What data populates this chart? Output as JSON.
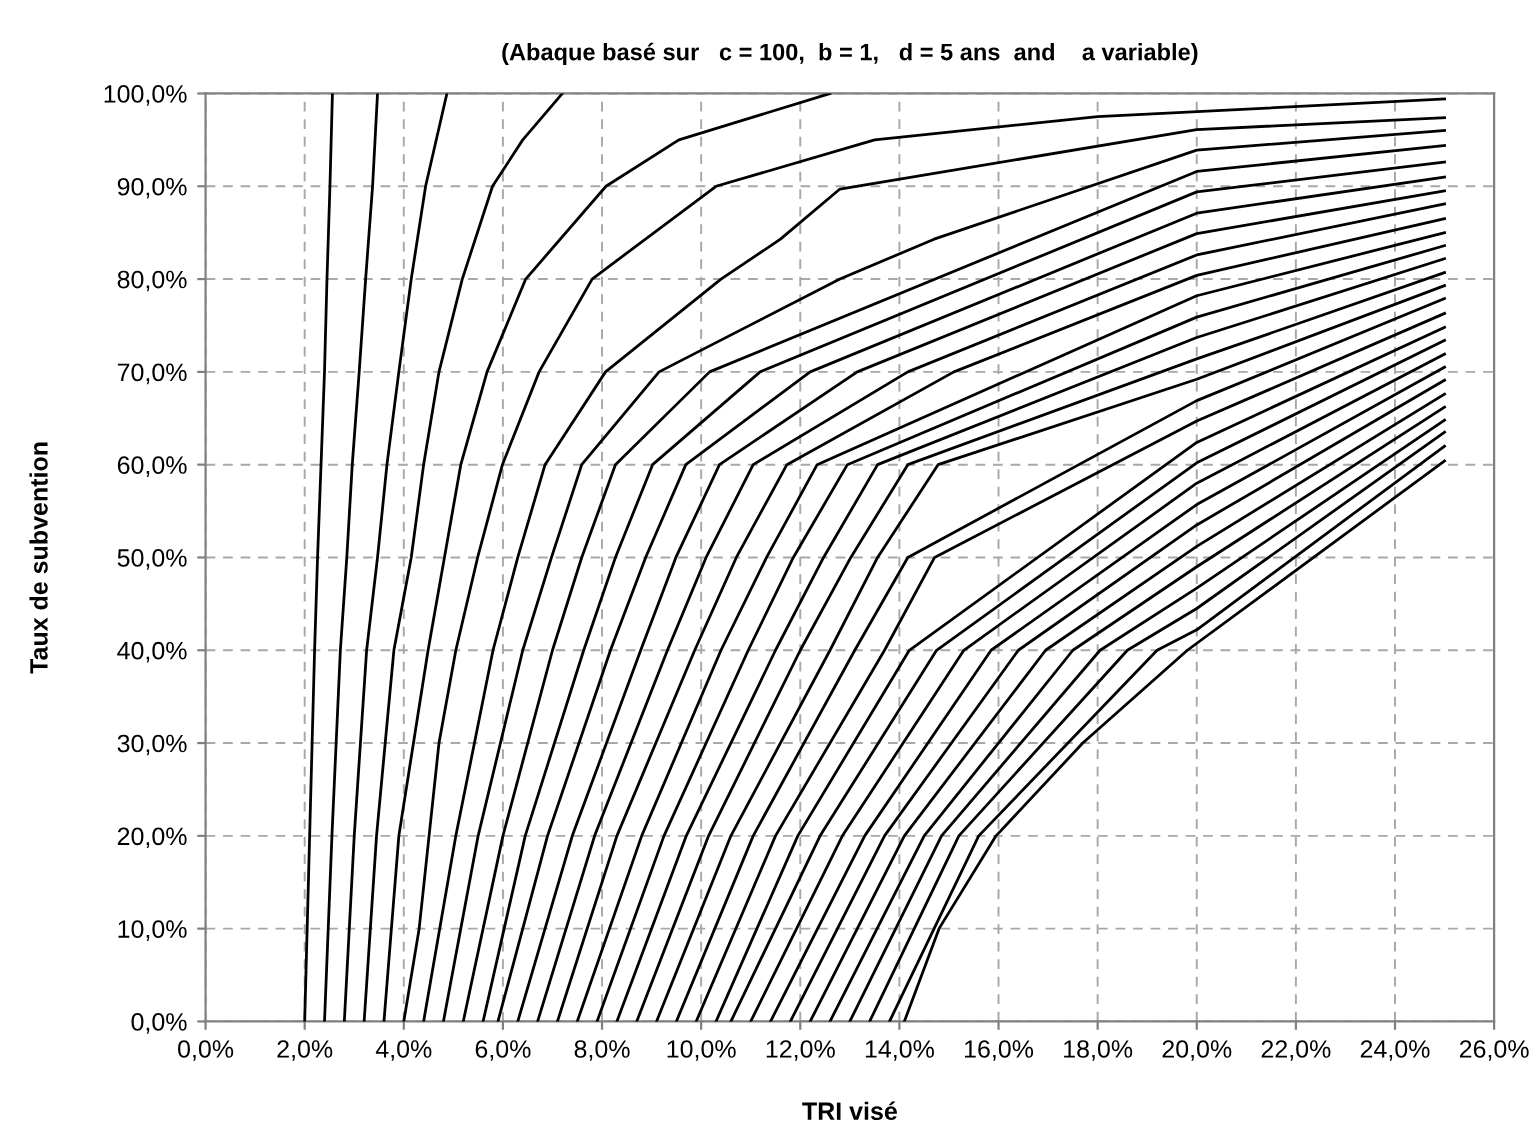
{
  "chart_data": {
    "type": "line",
    "title": "(Abaque basé sur   c = 100,  b = 1,   d = 5 ans  and    a variable)",
    "xlabel": "TRI visé",
    "ylabel": "Taux de subvention",
    "grid": true,
    "line_style": "solid",
    "xlim": [
      0,
      26
    ],
    "ylim": [
      0,
      100
    ],
    "xticks": [
      {
        "value": 0,
        "label": "0,0%"
      },
      {
        "value": 2,
        "label": "2,0%"
      },
      {
        "value": 4,
        "label": "4,0%"
      },
      {
        "value": 6,
        "label": "6,0%"
      },
      {
        "value": 8,
        "label": "8,0%"
      },
      {
        "value": 10,
        "label": "10,0%"
      },
      {
        "value": 12,
        "label": "12,0%"
      },
      {
        "value": 14,
        "label": "14,0%"
      },
      {
        "value": 16,
        "label": "16,0%"
      },
      {
        "value": 18,
        "label": "18,0%"
      },
      {
        "value": 20,
        "label": "20,0%"
      },
      {
        "value": 22,
        "label": "22,0%"
      },
      {
        "value": 24,
        "label": "24,0%"
      },
      {
        "value": 26,
        "label": "26,0%"
      }
    ],
    "yticks": [
      {
        "value": 0,
        "label": "0,0%"
      },
      {
        "value": 10,
        "label": "10,0%"
      },
      {
        "value": 20,
        "label": "20,0%"
      },
      {
        "value": 30,
        "label": "30,0%"
      },
      {
        "value": 40,
        "label": "40,0%"
      },
      {
        "value": 50,
        "label": "50,0%"
      },
      {
        "value": 60,
        "label": "60,0%"
      },
      {
        "value": 70,
        "label": "70,0%"
      },
      {
        "value": 80,
        "label": "80,0%"
      },
      {
        "value": 90,
        "label": "90,0%"
      },
      {
        "value": 100,
        "label": "100,0%"
      }
    ],
    "series": [
      {
        "color": "#000000",
        "x": [
          2.0,
          2.1,
          2.2,
          2.26,
          2.33,
          2.4,
          2.45,
          2.51,
          2.56
        ],
        "values": [
          0,
          20,
          40,
          50,
          60,
          70,
          80,
          90,
          100
        ]
      },
      {
        "color": "#000000",
        "x": [
          2.4,
          2.55,
          2.72,
          2.85,
          2.96,
          3.1,
          3.23,
          3.37,
          3.47
        ],
        "values": [
          0,
          20,
          40,
          50,
          60,
          70,
          80,
          90,
          100
        ]
      },
      {
        "color": "#000000",
        "x": [
          2.8,
          3.0,
          3.25,
          3.47,
          3.66,
          3.9,
          4.15,
          4.44,
          4.87
        ],
        "values": [
          0,
          20,
          40,
          50,
          60,
          70,
          80,
          90,
          100
        ]
      },
      {
        "color": "#000000",
        "x": [
          3.2,
          3.45,
          3.8,
          4.15,
          4.4,
          4.71,
          5.18,
          5.79,
          6.4,
          7.2
        ],
        "values": [
          0,
          20,
          40,
          50,
          60,
          70,
          80,
          90,
          95,
          100
        ]
      },
      {
        "color": "#000000",
        "x": [
          3.6,
          3.9,
          4.49,
          4.82,
          5.15,
          5.68,
          6.46,
          8.08,
          9.55,
          12.6
        ],
        "values": [
          0,
          20,
          40,
          50,
          60,
          70,
          80,
          90,
          95,
          100
        ]
      },
      {
        "color": "#000000",
        "x": [
          4.0,
          4.31,
          4.51,
          4.71,
          5.05,
          5.49,
          5.99,
          6.73,
          7.8,
          10.3,
          13.5,
          18,
          25
        ],
        "values": [
          0,
          10,
          20,
          30,
          40,
          50,
          60,
          70,
          80,
          90,
          95,
          97.5,
          99.4
        ]
      },
      {
        "color": "#000000",
        "x": [
          4.4,
          5.05,
          5.8,
          6.3,
          6.85,
          8.07,
          10.4,
          11.6,
          12.8,
          20,
          25
        ],
        "values": [
          0,
          20,
          40,
          50,
          60,
          70,
          80,
          84.3,
          89.7,
          96.1,
          97.4
        ]
      },
      {
        "color": "#000000",
        "x": [
          4.8,
          5.5,
          6.4,
          6.98,
          7.59,
          9.15,
          12.8,
          14.7,
          20,
          25
        ],
        "values": [
          0,
          20,
          40,
          50,
          60,
          70,
          80,
          84.3,
          93.9,
          96.0
        ]
      },
      {
        "color": "#000000",
        "x": [
          5.2,
          6.0,
          7.0,
          7.59,
          8.27,
          10.17,
          20,
          25
        ],
        "values": [
          0,
          20,
          40,
          50,
          60,
          70,
          91.6,
          94.4
        ]
      },
      {
        "color": "#000000",
        "x": [
          5.6,
          6.45,
          7.63,
          8.27,
          9.02,
          11.19,
          20,
          25
        ],
        "values": [
          0,
          20,
          40,
          50,
          60,
          70,
          89.4,
          92.6
        ]
      },
      {
        "color": "#000000",
        "x": [
          5.9,
          6.9,
          8.17,
          8.88,
          9.69,
          12.2,
          20,
          25
        ],
        "values": [
          0,
          20,
          40,
          50,
          60,
          70,
          87.1,
          91.0
        ]
      },
      {
        "color": "#000000",
        "x": [
          6.3,
          7.4,
          8.78,
          9.49,
          10.37,
          13.15,
          20,
          25
        ],
        "values": [
          0,
          20,
          40,
          50,
          60,
          70,
          84.9,
          89.5
        ]
      },
      {
        "color": "#000000",
        "x": [
          6.7,
          7.85,
          9.32,
          10.1,
          11.05,
          14.17,
          20,
          25
        ],
        "values": [
          0,
          20,
          40,
          50,
          60,
          70,
          82.6,
          88.1
        ]
      },
      {
        "color": "#000000",
        "x": [
          7.1,
          8.3,
          9.87,
          10.71,
          11.73,
          15.1,
          20,
          25
        ],
        "values": [
          0,
          20,
          40,
          50,
          60,
          70,
          80.4,
          86.5
        ]
      },
      {
        "color": "#000000",
        "x": [
          7.5,
          8.8,
          10.4,
          11.32,
          12.34,
          20,
          25
        ],
        "values": [
          0,
          20,
          40,
          50,
          60,
          78.2,
          85.0
        ]
      },
      {
        "color": "#000000",
        "x": [
          7.9,
          9.25,
          10.95,
          11.86,
          12.95,
          20,
          25
        ],
        "values": [
          0,
          20,
          40,
          50,
          60,
          75.9,
          83.6
        ]
      },
      {
        "color": "#000000",
        "x": [
          8.3,
          9.7,
          11.5,
          12.47,
          13.56,
          20,
          25
        ],
        "values": [
          0,
          20,
          40,
          50,
          60,
          73.7,
          82.2
        ]
      },
      {
        "color": "#000000",
        "x": [
          8.7,
          10.15,
          12.0,
          13.02,
          14.17,
          20,
          25
        ],
        "values": [
          0,
          20,
          40,
          50,
          60,
          71.4,
          80.7
        ]
      },
      {
        "color": "#000000",
        "x": [
          9.1,
          10.6,
          12.6,
          13.56,
          14.78,
          20,
          25
        ],
        "values": [
          0,
          20,
          40,
          50,
          60,
          69.2,
          79.3
        ]
      },
      {
        "color": "#000000",
        "x": [
          9.5,
          11.05,
          13.1,
          14.17,
          20,
          25
        ],
        "values": [
          0,
          20,
          40,
          50,
          66.9,
          77.9
        ]
      },
      {
        "color": "#000000",
        "x": [
          9.9,
          11.5,
          13.7,
          14.71,
          20,
          25
        ],
        "values": [
          0,
          20,
          40,
          50,
          64.7,
          76.3
        ]
      },
      {
        "color": "#000000",
        "x": [
          10.3,
          11.95,
          14.2,
          20,
          25
        ],
        "values": [
          0,
          20,
          40,
          62.4,
          74.8
        ]
      },
      {
        "color": "#000000",
        "x": [
          10.6,
          12.4,
          14.75,
          20,
          25
        ],
        "values": [
          0,
          20,
          40,
          60.2,
          73.4
        ]
      },
      {
        "color": "#000000",
        "x": [
          11.0,
          12.85,
          15.3,
          20,
          25
        ],
        "values": [
          0,
          20,
          40,
          58.0,
          71.9
        ]
      },
      {
        "color": "#000000",
        "x": [
          11.4,
          13.3,
          15.85,
          20,
          25
        ],
        "values": [
          0,
          20,
          40,
          55.7,
          70.5
        ]
      },
      {
        "color": "#000000",
        "x": [
          11.8,
          13.7,
          16.4,
          20,
          25
        ],
        "values": [
          0,
          20,
          40,
          53.5,
          69.1
        ]
      },
      {
        "color": "#000000",
        "x": [
          12.2,
          14.1,
          16.95,
          20,
          25
        ],
        "values": [
          0,
          20,
          40,
          51.2,
          67.6
        ]
      },
      {
        "color": "#000000",
        "x": [
          12.6,
          14.5,
          17.5,
          20,
          25
        ],
        "values": [
          0,
          20,
          40,
          49.0,
          66.2
        ]
      },
      {
        "color": "#000000",
        "x": [
          13.0,
          14.85,
          18.05,
          20,
          25
        ],
        "values": [
          0,
          20,
          40,
          46.7,
          64.8
        ]
      },
      {
        "color": "#000000",
        "x": [
          13.4,
          15.2,
          18.6,
          20,
          25
        ],
        "values": [
          0,
          20,
          40,
          44.5,
          63.5
        ]
      },
      {
        "color": "#000000",
        "x": [
          13.8,
          15.6,
          19.2,
          20,
          25
        ],
        "values": [
          0,
          20,
          40,
          42.2,
          62.0
        ]
      },
      {
        "color": "#000000",
        "x": [
          14.1,
          14.8,
          15.95,
          17.7,
          19.81,
          25
        ],
        "values": [
          0,
          10,
          20,
          30,
          40,
          60.4
        ]
      }
    ]
  }
}
